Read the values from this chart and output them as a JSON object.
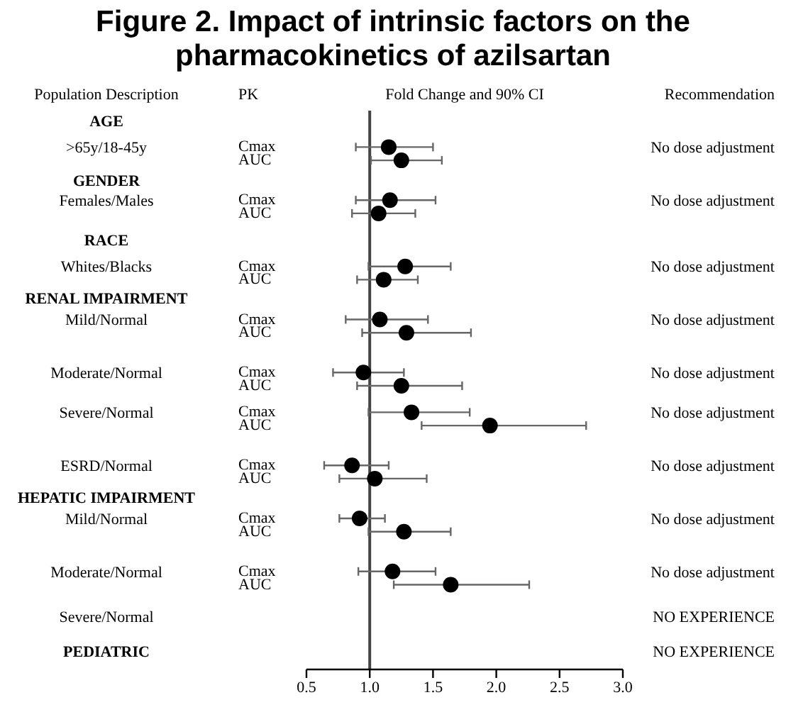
{
  "chart_data": {
    "type": "scatter",
    "orientation": "horizontal",
    "title": "Figure 2. Impact of intrinsic factors on the pharmacokinetics of azilsartan",
    "categories": [
      null,
      null,
      "Cmax",
      "AUC",
      null,
      null,
      "Cmax",
      "AUC",
      null,
      null,
      null,
      "Cmax",
      "AUC",
      null,
      null,
      "Cmax",
      "AUC",
      null,
      null,
      "Cmax",
      "AUC",
      null,
      "Cmax",
      "AUC",
      null,
      null,
      "Cmax",
      "AUC",
      null,
      null,
      "Cmax",
      "AUC",
      null,
      null,
      "Cmax",
      "AUC"
    ],
    "series": [
      {
        "color": "#000000",
        "values": [
          null,
          null,
          1.15,
          1.25,
          null,
          null,
          1.16,
          1.07,
          null,
          null,
          null,
          1.28,
          1.11,
          null,
          null,
          1.08,
          1.29,
          null,
          null,
          0.95,
          1.25,
          null,
          1.33,
          1.95,
          null,
          null,
          0.86,
          1.04,
          null,
          null,
          0.92,
          1.27,
          null,
          null,
          1.18,
          1.64
        ],
        "errors": [
          null,
          null,
          [
            0.89,
            1.5
          ],
          [
            1.01,
            1.57
          ],
          null,
          null,
          [
            0.89,
            1.52
          ],
          [
            0.86,
            1.36
          ],
          null,
          null,
          null,
          [
            0.99,
            1.64
          ],
          [
            0.9,
            1.38
          ],
          null,
          null,
          [
            0.81,
            1.46
          ],
          [
            0.94,
            1.8
          ],
          null,
          null,
          [
            0.71,
            1.27
          ],
          [
            0.9,
            1.73
          ],
          null,
          [
            0.99,
            1.79
          ],
          [
            1.41,
            2.71
          ],
          null,
          null,
          [
            0.64,
            1.15
          ],
          [
            0.76,
            1.45
          ],
          null,
          null,
          [
            0.76,
            1.12
          ],
          [
            0.99,
            1.64
          ],
          null,
          null,
          [
            0.91,
            1.52
          ],
          [
            1.19,
            2.26
          ]
        ]
      }
    ],
    "xlim": [
      0.5,
      3.0
    ],
    "xticks": [
      {
        "value": 0.5,
        "label": "0.5"
      },
      {
        "value": 1.0,
        "label": "1.0"
      },
      {
        "value": 1.5,
        "label": "1.5"
      },
      {
        "value": 2.0,
        "label": "2.0"
      },
      {
        "value": 2.5,
        "label": "2.5"
      },
      {
        "value": 3.0,
        "label": "3.0"
      }
    ],
    "ref_lines": [
      {
        "axis": "x",
        "value": 1.0,
        "color": "#444444"
      }
    ],
    "marker": "circle",
    "annotations": [
      "Population Description",
      "PK",
      "Fold Change and 90% CI",
      "Recommendation",
      "AGE",
      ">65y/18-45y",
      "No dose adjustment",
      "GENDER",
      "Females/Males",
      "No dose adjustment",
      "RACE",
      "Whites/Blacks",
      "No dose adjustment",
      "RENAL IMPAIRMENT",
      "Mild/Normal",
      "No dose adjustment",
      "Moderate/Normal",
      "No dose adjustment",
      "Severe/Normal",
      "No dose adjustment",
      "ESRD/Normal",
      "No dose adjustment",
      "HEPATIC IMPAIRMENT",
      "Mild/Normal",
      "No dose adjustment",
      "Moderate/Normal",
      "No dose adjustment",
      "Severe/Normal",
      "NO EXPERIENCE",
      "PEDIATRIC",
      "NO EXPERIENCE"
    ]
  }
}
